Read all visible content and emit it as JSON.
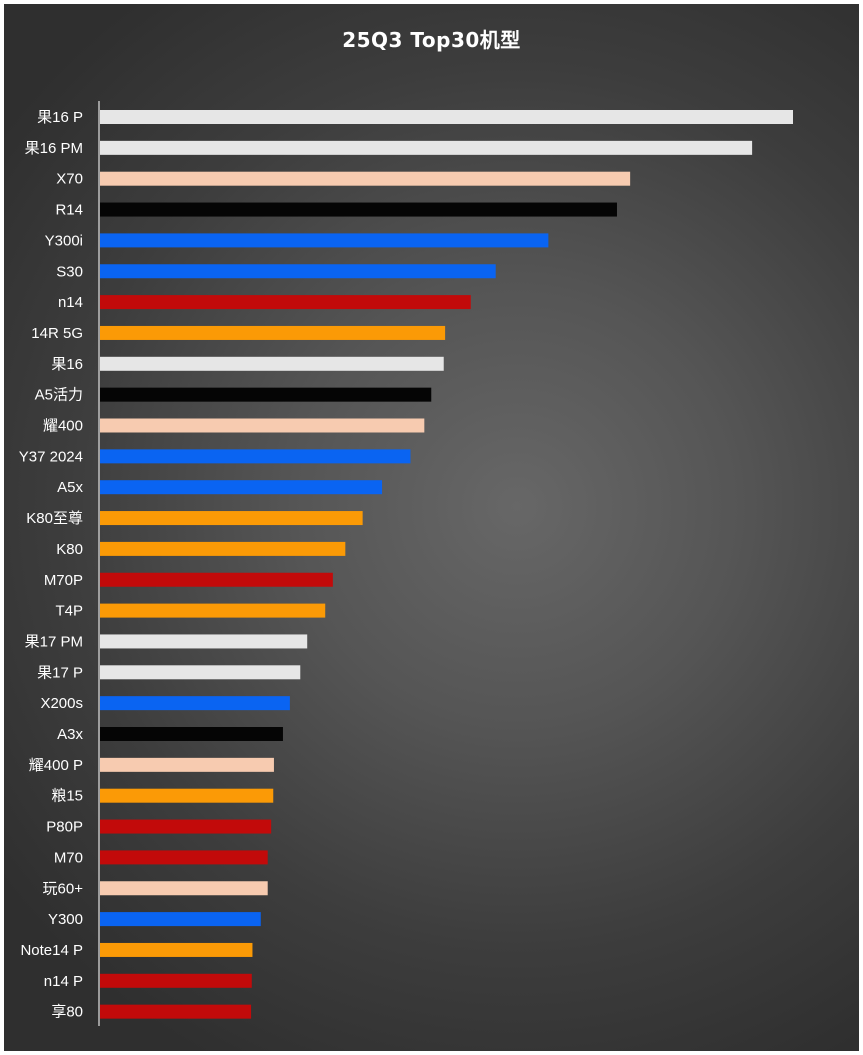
{
  "colors": {
    "apple": "#e6e6e6",
    "peach": "#f7cbb0",
    "black": "#050505",
    "blue": "#0a64f2",
    "red": "#c20a0a",
    "orange": "#fb9a06",
    "axis": "#bfbfbf"
  },
  "chart_data": {
    "type": "bar",
    "orientation": "horizontal",
    "title": "25Q3 Top30机型",
    "xlabel": "",
    "ylabel": "",
    "grid": false,
    "legend": "none",
    "xlim": [
      0,
      100
    ],
    "categories": [
      "果16 P",
      "果16 PM",
      "X70",
      "R14",
      "Y300i",
      "S30",
      "n14",
      "14R 5G",
      "果16",
      "A5活力",
      "耀400",
      "Y37 2024",
      "A5x",
      "K80至尊",
      "K80",
      "M70P",
      "T4P",
      "果17 PM",
      "果17 P",
      "X200s",
      "A3x",
      "耀400 P",
      "粮15",
      "P80P",
      "M70",
      "玩60+",
      "Y300",
      "Note14 P",
      "n14 P",
      "享80"
    ],
    "values": [
      100,
      94.1,
      76.5,
      74.6,
      64.7,
      57.1,
      53.5,
      49.8,
      49.6,
      47.8,
      46.8,
      44.8,
      40.7,
      37.9,
      35.4,
      33.6,
      32.5,
      29.9,
      28.9,
      27.4,
      26.4,
      25.1,
      25.0,
      24.7,
      24.2,
      24.2,
      23.2,
      22.0,
      21.9,
      21.8
    ],
    "bar_colors": [
      "apple",
      "apple",
      "peach",
      "black",
      "blue",
      "blue",
      "red",
      "orange",
      "apple",
      "black",
      "peach",
      "blue",
      "blue",
      "orange",
      "orange",
      "red",
      "orange",
      "apple",
      "apple",
      "blue",
      "black",
      "peach",
      "orange",
      "red",
      "red",
      "peach",
      "blue",
      "orange",
      "red",
      "red"
    ]
  }
}
